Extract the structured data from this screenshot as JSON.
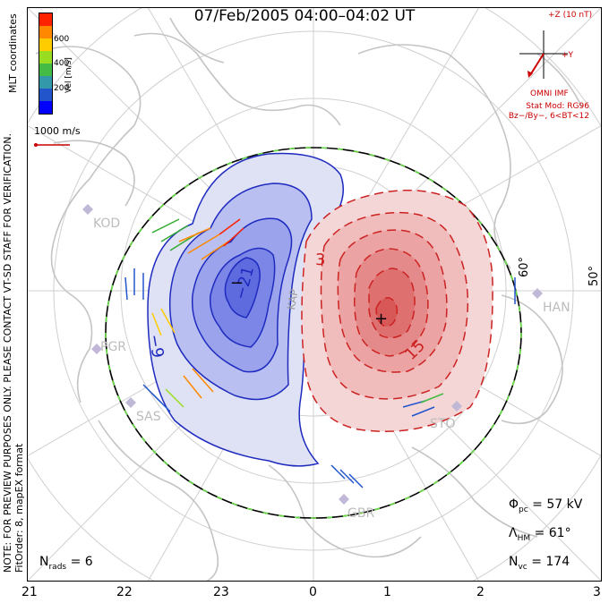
{
  "title": "07/Feb/2005 04:00–04:02 UT",
  "coord_label": "MLT coordinates",
  "colorbar": {
    "label": "Vel [m/s]",
    "ticks": [
      "600",
      "400",
      "200"
    ],
    "colors": [
      "#0000ff",
      "#2255cc",
      "#3399aa",
      "#44bb44",
      "#99dd22",
      "#ffcc00",
      "#ff8800",
      "#ff2200"
    ]
  },
  "scale_vector": "1000 m/s",
  "imf": {
    "z_label": "+Z (10 nT)",
    "y_label": "+Y",
    "source": "OMNI IMF"
  },
  "stat_model": [
    "Stat Mod: RG96",
    "Bz−/By−, 6<BT<12"
  ],
  "note_lines": [
    "NOTE: FOR PREVIEW PURPOSES ONLY. PLEASE CONTACT VT-SD STAFF FOR VERIFICATION.",
    "FitOrder: 8, mapEX format"
  ],
  "latitude_labels": [
    "60°",
    "50°"
  ],
  "radar_labels": [
    "KOD",
    "PGR",
    "SAS",
    "KAP",
    "GBR",
    "STO",
    "HAN"
  ],
  "contour_labels": [
    "−9",
    "−21",
    "3",
    "15",
    "−",
    "+"
  ],
  "stats": {
    "phi_pc": "= 57 kV",
    "lambda_hm": "= 61°",
    "n_vc": "= 174",
    "n_rads": "= 6"
  },
  "mlt_ticks": [
    "21",
    "22",
    "23",
    "0",
    "1",
    "2",
    "3"
  ]
}
